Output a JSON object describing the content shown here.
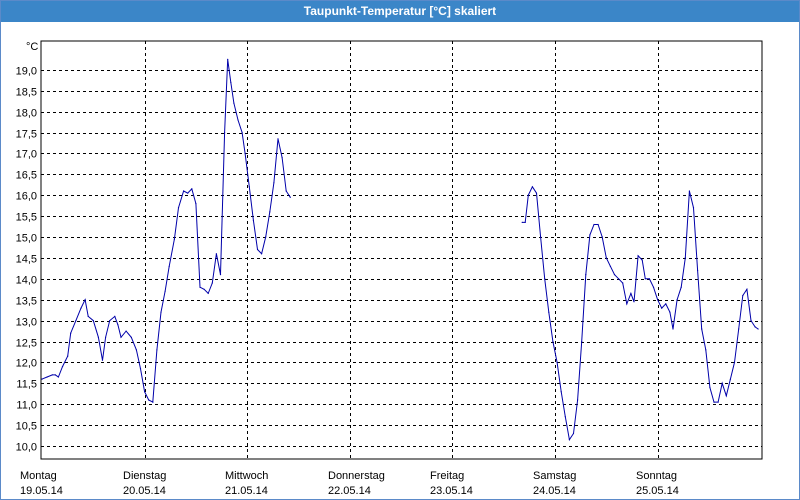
{
  "window": {
    "title": "Taupunkt-Temperatur [°C] skaliert"
  },
  "chart_data": {
    "type": "line",
    "title": "Taupunkt-Temperatur [°C] skaliert",
    "ylabel": "°C",
    "ylim": [
      9.8,
      19.6
    ],
    "yticks": [
      "10,0",
      "10,5",
      "11,0",
      "11,5",
      "12,0",
      "12,5",
      "13,0",
      "13,5",
      "14,0",
      "14,5",
      "15,0",
      "15,5",
      "16,0",
      "16,5",
      "17,0",
      "17,5",
      "18,0",
      "18,5",
      "19,0"
    ],
    "ytick_values": [
      10.0,
      10.5,
      11.0,
      11.5,
      12.0,
      12.5,
      13.0,
      13.5,
      14.0,
      14.5,
      15.0,
      15.5,
      16.0,
      16.5,
      17.0,
      17.5,
      18.0,
      18.5,
      19.0
    ],
    "xlim": [
      0,
      7.2
    ],
    "xticks": [
      {
        "day": "Montag",
        "date": "19.05.14",
        "x": 0
      },
      {
        "day": "Dienstag",
        "date": "20.05.14",
        "x": 1
      },
      {
        "day": "Mittwoch",
        "date": "21.05.14",
        "x": 2
      },
      {
        "day": "Donnerstag",
        "date": "22.05.14",
        "x": 3
      },
      {
        "day": "Freitag",
        "date": "23.05.14",
        "x": 4
      },
      {
        "day": "Samstag",
        "date": "24.05.14",
        "x": 5
      },
      {
        "day": "Sonntag",
        "date": "25.05.14",
        "x": 6
      }
    ],
    "grid": true,
    "line_color": "#0000aa",
    "series": [
      {
        "points": [
          [
            0.0,
            11.6
          ],
          [
            0.05,
            11.65
          ],
          [
            0.1,
            11.7
          ],
          [
            0.13,
            11.7
          ],
          [
            0.16,
            11.65
          ],
          [
            0.2,
            11.9
          ],
          [
            0.25,
            12.15
          ],
          [
            0.28,
            12.7
          ],
          [
            0.33,
            13.0
          ],
          [
            0.38,
            13.3
          ],
          [
            0.42,
            13.5
          ],
          [
            0.45,
            13.1
          ],
          [
            0.5,
            13.0
          ],
          [
            0.55,
            12.6
          ],
          [
            0.59,
            12.05
          ],
          [
            0.62,
            12.6
          ],
          [
            0.66,
            13.0
          ],
          [
            0.71,
            13.1
          ],
          [
            0.74,
            12.9
          ],
          [
            0.77,
            12.6
          ],
          [
            0.82,
            12.75
          ],
          [
            0.87,
            12.6
          ],
          [
            0.92,
            12.3
          ],
          [
            0.96,
            11.85
          ],
          [
            1.0,
            11.3
          ],
          [
            1.04,
            11.1
          ],
          [
            1.08,
            11.05
          ],
          [
            1.12,
            12.3
          ],
          [
            1.16,
            13.2
          ],
          [
            1.2,
            13.7
          ],
          [
            1.24,
            14.3
          ],
          [
            1.29,
            14.95
          ],
          [
            1.33,
            15.7
          ],
          [
            1.38,
            16.1
          ],
          [
            1.42,
            16.05
          ],
          [
            1.46,
            16.15
          ],
          [
            1.5,
            15.8
          ],
          [
            1.54,
            13.8
          ],
          [
            1.58,
            13.75
          ],
          [
            1.62,
            13.65
          ],
          [
            1.66,
            13.9
          ],
          [
            1.7,
            14.6
          ],
          [
            1.74,
            14.1
          ],
          [
            1.78,
            17.5
          ],
          [
            1.81,
            19.25
          ],
          [
            1.84,
            18.7
          ],
          [
            1.87,
            18.2
          ],
          [
            1.91,
            17.8
          ],
          [
            1.95,
            17.5
          ],
          [
            1.98,
            17.0
          ],
          [
            2.02,
            16.2
          ],
          [
            2.06,
            15.4
          ],
          [
            2.1,
            14.7
          ],
          [
            2.14,
            14.6
          ],
          [
            2.18,
            15.0
          ],
          [
            2.22,
            15.6
          ],
          [
            2.26,
            16.3
          ],
          [
            2.3,
            17.35
          ],
          [
            2.34,
            16.9
          ],
          [
            2.38,
            16.1
          ],
          [
            2.42,
            15.95
          ]
        ]
      },
      {
        "points": [
          [
            4.68,
            15.35
          ],
          [
            4.71,
            15.35
          ],
          [
            4.74,
            16.0
          ],
          [
            4.78,
            16.2
          ],
          [
            4.82,
            16.05
          ],
          [
            4.86,
            15.0
          ],
          [
            4.9,
            14.0
          ],
          [
            4.94,
            13.2
          ],
          [
            4.98,
            12.5
          ],
          [
            5.02,
            12.0
          ],
          [
            5.06,
            11.3
          ],
          [
            5.1,
            10.7
          ],
          [
            5.14,
            10.15
          ],
          [
            5.18,
            10.3
          ],
          [
            5.22,
            11.1
          ],
          [
            5.26,
            12.5
          ],
          [
            5.3,
            14.1
          ],
          [
            5.34,
            15.05
          ],
          [
            5.38,
            15.3
          ],
          [
            5.42,
            15.3
          ],
          [
            5.46,
            15.0
          ],
          [
            5.5,
            14.5
          ],
          [
            5.54,
            14.3
          ],
          [
            5.58,
            14.1
          ],
          [
            5.62,
            14.0
          ],
          [
            5.66,
            13.9
          ],
          [
            5.7,
            13.4
          ],
          [
            5.74,
            13.65
          ],
          [
            5.77,
            13.45
          ],
          [
            5.81,
            14.55
          ],
          [
            5.85,
            14.45
          ],
          [
            5.88,
            14.0
          ],
          [
            5.92,
            14.0
          ],
          [
            5.96,
            13.8
          ],
          [
            6.0,
            13.5
          ],
          [
            6.04,
            13.3
          ],
          [
            6.08,
            13.4
          ],
          [
            6.12,
            13.2
          ],
          [
            6.15,
            12.8
          ],
          [
            6.19,
            13.5
          ],
          [
            6.23,
            13.8
          ],
          [
            6.27,
            14.5
          ],
          [
            6.31,
            16.1
          ],
          [
            6.35,
            15.7
          ],
          [
            6.39,
            14.2
          ],
          [
            6.43,
            12.8
          ],
          [
            6.47,
            12.3
          ],
          [
            6.51,
            11.4
          ],
          [
            6.55,
            11.05
          ],
          [
            6.59,
            11.05
          ],
          [
            6.63,
            11.5
          ],
          [
            6.67,
            11.2
          ],
          [
            6.71,
            11.6
          ],
          [
            6.75,
            12.0
          ],
          [
            6.79,
            12.8
          ],
          [
            6.83,
            13.6
          ],
          [
            6.87,
            13.75
          ],
          [
            6.91,
            13.0
          ],
          [
            6.95,
            12.85
          ],
          [
            6.98,
            12.8
          ]
        ]
      }
    ]
  }
}
